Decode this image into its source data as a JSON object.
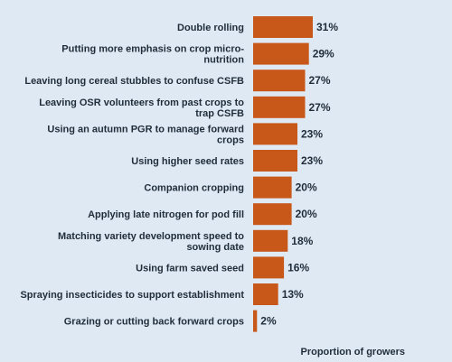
{
  "chart_data": {
    "type": "bar",
    "orientation": "horizontal",
    "xlabel": "Proportion of growers",
    "value_suffix": "%",
    "xlim": [
      0,
      31
    ],
    "bar_color": "#c8581a",
    "categories": [
      [
        "Double rolling"
      ],
      [
        "Putting more emphasis on crop micro-",
        "nutrition"
      ],
      [
        "Leaving long cereal stubbles to confuse CSFB"
      ],
      [
        "Leaving OSR volunteers from past crops to",
        "trap CSFB"
      ],
      [
        "Using an autumn PGR to manage forward",
        "crops"
      ],
      [
        "Using higher seed rates"
      ],
      [
        "Companion cropping"
      ],
      [
        "Applying late nitrogen for pod fill"
      ],
      [
        "Matching variety development speed to",
        "sowing date"
      ],
      [
        "Using farm saved seed"
      ],
      [
        "Spraying insecticides to support establishment"
      ],
      [
        "Grazing or cutting back forward crops"
      ]
    ],
    "values": [
      31,
      29,
      27,
      27,
      23,
      23,
      20,
      20,
      18,
      16,
      13,
      2
    ]
  }
}
